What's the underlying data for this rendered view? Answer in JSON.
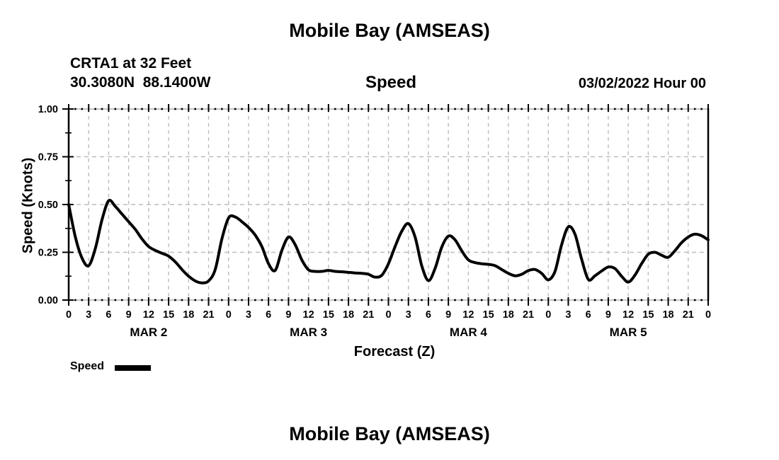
{
  "header": {
    "title": "Mobile Bay (AMSEAS)",
    "station_line1": "CRTA1 at 32 Feet",
    "station_line2": "30.3080N  88.1400W",
    "subtitle": "Speed",
    "datetime": "03/02/2022 Hour 00"
  },
  "legend": {
    "label": "Speed",
    "swatch_color": "#000000"
  },
  "footer": {
    "next_title": "Mobile Bay (AMSEAS)"
  },
  "chart_data": {
    "type": "line",
    "title": "Speed",
    "xlabel": "Forecast (Z)",
    "ylabel": "Speed (Knots)",
    "ylim": [
      0.0,
      1.0
    ],
    "ytick_values": [
      0.0,
      0.25,
      0.5,
      0.75,
      1.0
    ],
    "ytick_labels": [
      "0.00",
      "0.25",
      "0.50",
      "0.75",
      "1.00"
    ],
    "yminor_values": [
      0.125,
      0.375,
      0.625,
      0.875
    ],
    "xlim_hours": [
      0,
      96
    ],
    "xtick_hours": [
      0,
      3,
      6,
      9,
      12,
      15,
      18,
      21,
      24,
      27,
      30,
      33,
      36,
      39,
      42,
      45,
      48,
      51,
      54,
      57,
      60,
      63,
      66,
      69,
      72,
      75,
      78,
      81,
      84,
      87,
      90,
      93,
      96
    ],
    "xtick_labels": [
      "0",
      "3",
      "6",
      "9",
      "12",
      "15",
      "18",
      "21",
      "0",
      "3",
      "6",
      "9",
      "12",
      "15",
      "18",
      "21",
      "0",
      "3",
      "6",
      "9",
      "12",
      "15",
      "18",
      "21",
      "0",
      "3",
      "6",
      "9",
      "12",
      "15",
      "18",
      "21",
      "0"
    ],
    "day_labels": [
      {
        "label": "MAR 2",
        "hour": 12
      },
      {
        "label": "MAR 3",
        "hour": 36
      },
      {
        "label": "MAR 4",
        "hour": 60
      },
      {
        "label": "MAR 5",
        "hour": 84
      }
    ],
    "grid": true,
    "legend_position": "bottom-left",
    "line_color": "#000000",
    "grid_color": "#bcbcbc",
    "series": [
      {
        "name": "Speed",
        "x_step_hours": 1,
        "values": [
          0.5,
          0.33,
          0.22,
          0.18,
          0.27,
          0.42,
          0.52,
          0.49,
          0.45,
          0.41,
          0.37,
          0.32,
          0.28,
          0.26,
          0.245,
          0.23,
          0.2,
          0.16,
          0.125,
          0.1,
          0.09,
          0.1,
          0.16,
          0.32,
          0.43,
          0.435,
          0.41,
          0.38,
          0.34,
          0.28,
          0.19,
          0.155,
          0.26,
          0.33,
          0.29,
          0.21,
          0.158,
          0.15,
          0.15,
          0.155,
          0.15,
          0.148,
          0.145,
          0.142,
          0.14,
          0.135,
          0.12,
          0.13,
          0.19,
          0.28,
          0.36,
          0.4,
          0.33,
          0.18,
          0.102,
          0.165,
          0.277,
          0.335,
          0.315,
          0.258,
          0.21,
          0.196,
          0.19,
          0.187,
          0.18,
          0.16,
          0.14,
          0.127,
          0.135,
          0.154,
          0.16,
          0.14,
          0.106,
          0.15,
          0.29,
          0.383,
          0.345,
          0.214,
          0.108,
          0.127,
          0.152,
          0.173,
          0.165,
          0.125,
          0.094,
          0.13,
          0.19,
          0.24,
          0.25,
          0.235,
          0.224,
          0.258,
          0.3,
          0.33,
          0.345,
          0.337,
          0.315
        ]
      }
    ]
  }
}
